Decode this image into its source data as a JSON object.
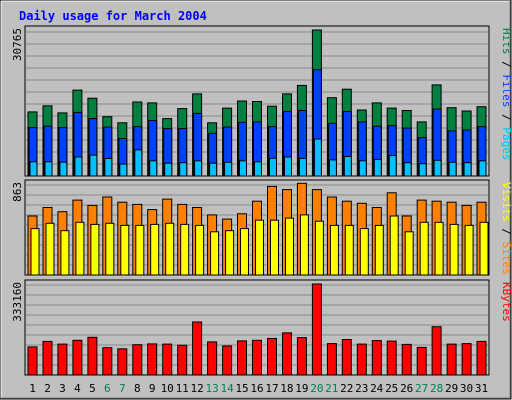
{
  "title": "Daily usage for March 2004",
  "colors": {
    "frame_bg": "#c0c0c0",
    "plot_bg": "#c0c0c0",
    "title": "#0000ff",
    "hits": "#008040",
    "files": "#0040ff",
    "pages": "#00c0ff",
    "visits": "#ffff00",
    "sites": "#ff8000",
    "kbytes": "#ff0000",
    "weekend": "#00805c",
    "weekday": "#000000"
  },
  "chart_data": [
    {
      "type": "bar",
      "title": "Daily usage for March 2004",
      "max_label": "30765",
      "ylim": [
        0,
        30765
      ],
      "legend": [
        {
          "text": "Pages",
          "color": "#00c0ff"
        },
        {
          "text": "Files",
          "color": "#0040ff"
        },
        {
          "text": "Hits",
          "color": "#008040"
        }
      ],
      "separator": " / ",
      "categories": [
        "1",
        "2",
        "3",
        "4",
        "5",
        "6",
        "7",
        "8",
        "9",
        "10",
        "11",
        "12",
        "13",
        "14",
        "15",
        "16",
        "17",
        "18",
        "19",
        "20",
        "21",
        "22",
        "23",
        "24",
        "25",
        "26",
        "27",
        "28",
        "29",
        "30",
        "31"
      ],
      "series": [
        {
          "name": "Hits",
          "values": [
            13500,
            14800,
            13300,
            18100,
            16400,
            12500,
            11200,
            15600,
            15400,
            12100,
            14200,
            17300,
            11200,
            14300,
            15800,
            15700,
            14700,
            17300,
            19100,
            30765,
            16500,
            18300,
            13900,
            15400,
            14300,
            13800,
            11400,
            19200,
            14400,
            13700,
            14600
          ]
        },
        {
          "name": "Files",
          "values": [
            10200,
            10500,
            10200,
            13400,
            12100,
            10300,
            7900,
            10400,
            11700,
            10000,
            10000,
            13200,
            9000,
            10300,
            11300,
            11400,
            10400,
            13600,
            13800,
            22400,
            11100,
            13600,
            11400,
            10500,
            10600,
            10100,
            8100,
            14100,
            9500,
            9700,
            10400
          ]
        },
        {
          "name": "Pages",
          "values": [
            3000,
            3000,
            2900,
            4000,
            4400,
            3700,
            2500,
            5500,
            3200,
            2700,
            2800,
            3200,
            2700,
            2900,
            3200,
            3000,
            3700,
            4000,
            3700,
            7800,
            3400,
            4100,
            3200,
            3500,
            4300,
            2800,
            2600,
            3300,
            2900,
            2800,
            3200
          ]
        }
      ]
    },
    {
      "type": "bar",
      "max_label": "863",
      "ylim": [
        0,
        863
      ],
      "legend": [
        {
          "text": "Sites",
          "color": "#ff8000"
        },
        {
          "text": "Visits",
          "color": "#ffff00"
        }
      ],
      "separator": " / ",
      "categories": [
        "1",
        "2",
        "3",
        "4",
        "5",
        "6",
        "7",
        "8",
        "9",
        "10",
        "11",
        "12",
        "13",
        "14",
        "15",
        "16",
        "17",
        "18",
        "19",
        "20",
        "21",
        "22",
        "23",
        "24",
        "25",
        "26",
        "27",
        "28",
        "29",
        "30",
        "31"
      ],
      "series": [
        {
          "name": "Sites",
          "values": [
            560,
            640,
            600,
            710,
            660,
            740,
            690,
            670,
            620,
            720,
            670,
            640,
            570,
            530,
            580,
            700,
            840,
            810,
            870,
            810,
            740,
            700,
            680,
            640,
            780,
            560,
            710,
            700,
            690,
            660,
            690
          ]
        },
        {
          "name": "Visits",
          "values": [
            440,
            490,
            420,
            500,
            480,
            490,
            470,
            470,
            480,
            490,
            480,
            470,
            410,
            420,
            440,
            520,
            520,
            540,
            570,
            510,
            470,
            470,
            440,
            470,
            560,
            410,
            500,
            500,
            480,
            470,
            500
          ]
        }
      ]
    },
    {
      "type": "bar",
      "max_label": "333160",
      "ylim": [
        0,
        333160
      ],
      "legend": [
        {
          "text": "KBytes",
          "color": "#ff0000"
        }
      ],
      "separator": "",
      "categories": [
        "1",
        "2",
        "3",
        "4",
        "5",
        "6",
        "7",
        "8",
        "9",
        "10",
        "11",
        "12",
        "13",
        "14",
        "15",
        "16",
        "17",
        "18",
        "19",
        "20",
        "21",
        "22",
        "23",
        "24",
        "25",
        "26",
        "27",
        "28",
        "29",
        "30",
        "31"
      ],
      "series": [
        {
          "name": "KBytes",
          "values": [
            103000,
            123000,
            113000,
            127000,
            138000,
            100000,
            96000,
            111000,
            114000,
            113000,
            109000,
            194000,
            121000,
            106000,
            125000,
            127000,
            134000,
            154000,
            137000,
            333160,
            115000,
            130000,
            113000,
            126000,
            124000,
            112000,
            101000,
            177000,
            113000,
            115000,
            123000
          ]
        }
      ]
    }
  ],
  "x_axis": {
    "labels": [
      "1",
      "2",
      "3",
      "4",
      "5",
      "6",
      "7",
      "8",
      "9",
      "10",
      "11",
      "12",
      "13",
      "14",
      "15",
      "16",
      "17",
      "18",
      "19",
      "20",
      "21",
      "22",
      "23",
      "24",
      "25",
      "26",
      "27",
      "28",
      "29",
      "30",
      "31"
    ],
    "weekend": [
      6,
      7,
      13,
      14,
      20,
      21,
      27,
      28
    ]
  }
}
